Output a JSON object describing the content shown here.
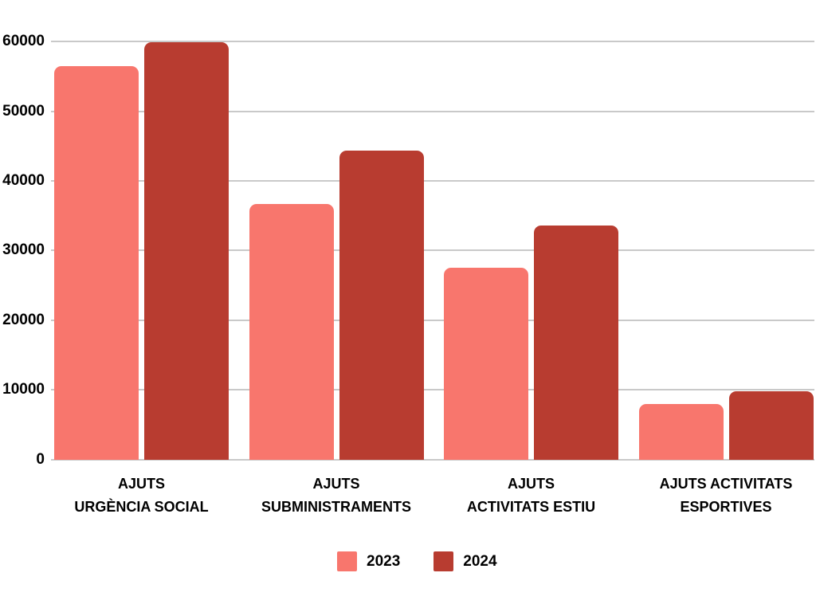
{
  "chart_data": {
    "type": "bar",
    "title": "",
    "xlabel": "",
    "ylabel": "",
    "categories": [
      "AJUTS\nURGÈNCIA SOCIAL",
      "AJUTS\nSUBMINISTRAMENTS",
      "AJUTS\nACTIVITATS ESTIU",
      "AJUTS ACTIVITATS\nESPORTIVES"
    ],
    "series": [
      {
        "name": "2023",
        "color": "#F8766D",
        "values": [
          56500,
          36700,
          27500,
          8000
        ]
      },
      {
        "name": "2024",
        "color": "#B83C30",
        "values": [
          59900,
          44300,
          33600,
          9800
        ]
      }
    ],
    "ylim": [
      0,
      60000
    ],
    "yticks": [
      0,
      10000,
      20000,
      30000,
      40000,
      50000,
      60000
    ],
    "grid": true,
    "gridline_color": "#C9C9C9",
    "legend_position": "bottom"
  }
}
